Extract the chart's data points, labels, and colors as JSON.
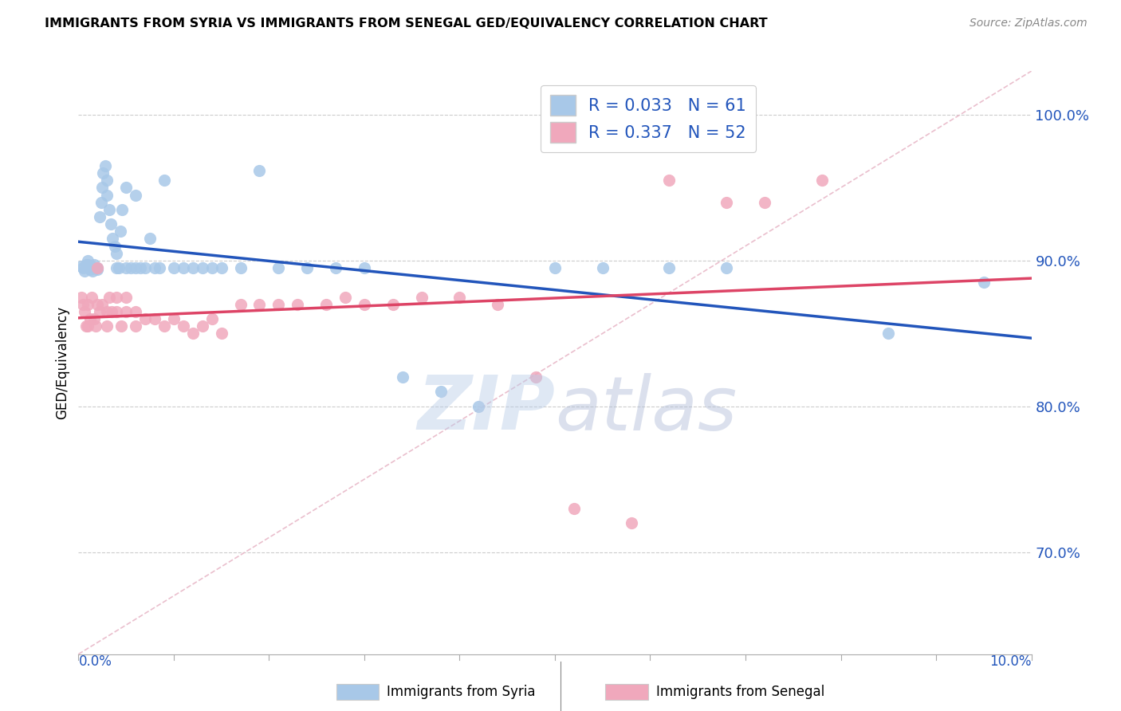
{
  "title": "IMMIGRANTS FROM SYRIA VS IMMIGRANTS FROM SENEGAL GED/EQUIVALENCY CORRELATION CHART",
  "source": "Source: ZipAtlas.com",
  "ylabel": "GED/Equivalency",
  "xlim": [
    0.0,
    0.1
  ],
  "ylim": [
    0.63,
    1.03
  ],
  "yticks": [
    0.7,
    0.8,
    0.9,
    1.0
  ],
  "ytick_labels": [
    "70.0%",
    "80.0%",
    "90.0%",
    "100.0%"
  ],
  "syria_color": "#a8c8e8",
  "senegal_color": "#f0a8bc",
  "syria_line_color": "#2255bb",
  "senegal_line_color": "#dd4466",
  "dashed_line_color": "#e8b8c8",
  "legend_text_color": "#2255bb",
  "syria_R": 0.033,
  "syria_N": 61,
  "senegal_R": 0.337,
  "senegal_N": 52,
  "syria_x": [
    0.0003,
    0.0005,
    0.0006,
    0.0008,
    0.001,
    0.001,
    0.0012,
    0.0013,
    0.0015,
    0.0016,
    0.0018,
    0.002,
    0.002,
    0.0022,
    0.0024,
    0.0025,
    0.0026,
    0.0028,
    0.003,
    0.003,
    0.0032,
    0.0034,
    0.0036,
    0.0038,
    0.004,
    0.004,
    0.0042,
    0.0044,
    0.0046,
    0.005,
    0.005,
    0.0055,
    0.006,
    0.006,
    0.0065,
    0.007,
    0.0075,
    0.008,
    0.0085,
    0.009,
    0.01,
    0.011,
    0.012,
    0.013,
    0.014,
    0.015,
    0.017,
    0.019,
    0.021,
    0.024,
    0.027,
    0.03,
    0.034,
    0.038,
    0.042,
    0.05,
    0.055,
    0.062,
    0.068,
    0.085,
    0.095
  ],
  "syria_y": [
    0.896,
    0.895,
    0.893,
    0.897,
    0.897,
    0.9,
    0.894,
    0.896,
    0.893,
    0.897,
    0.895,
    0.894,
    0.895,
    0.93,
    0.94,
    0.95,
    0.96,
    0.965,
    0.955,
    0.945,
    0.935,
    0.925,
    0.915,
    0.91,
    0.905,
    0.895,
    0.895,
    0.92,
    0.935,
    0.895,
    0.95,
    0.895,
    0.895,
    0.945,
    0.895,
    0.895,
    0.915,
    0.895,
    0.895,
    0.955,
    0.895,
    0.895,
    0.895,
    0.895,
    0.895,
    0.895,
    0.895,
    0.962,
    0.895,
    0.895,
    0.895,
    0.895,
    0.82,
    0.81,
    0.8,
    0.895,
    0.895,
    0.895,
    0.895,
    0.85,
    0.885
  ],
  "senegal_x": [
    0.0003,
    0.0005,
    0.0006,
    0.0008,
    0.001,
    0.001,
    0.0012,
    0.0014,
    0.0016,
    0.0018,
    0.002,
    0.002,
    0.0022,
    0.0025,
    0.003,
    0.003,
    0.0032,
    0.0035,
    0.004,
    0.004,
    0.0045,
    0.005,
    0.005,
    0.006,
    0.006,
    0.007,
    0.008,
    0.009,
    0.01,
    0.011,
    0.012,
    0.013,
    0.014,
    0.015,
    0.017,
    0.019,
    0.021,
    0.023,
    0.026,
    0.028,
    0.03,
    0.033,
    0.036,
    0.04,
    0.044,
    0.048,
    0.052,
    0.058,
    0.062,
    0.068,
    0.072,
    0.078
  ],
  "senegal_y": [
    0.875,
    0.87,
    0.865,
    0.855,
    0.855,
    0.87,
    0.86,
    0.875,
    0.86,
    0.855,
    0.895,
    0.87,
    0.865,
    0.87,
    0.865,
    0.855,
    0.875,
    0.865,
    0.865,
    0.875,
    0.855,
    0.865,
    0.875,
    0.865,
    0.855,
    0.86,
    0.86,
    0.855,
    0.86,
    0.855,
    0.85,
    0.855,
    0.86,
    0.85,
    0.87,
    0.87,
    0.87,
    0.87,
    0.87,
    0.875,
    0.87,
    0.87,
    0.875,
    0.875,
    0.87,
    0.82,
    0.73,
    0.72,
    0.955,
    0.94,
    0.94,
    0.955
  ]
}
